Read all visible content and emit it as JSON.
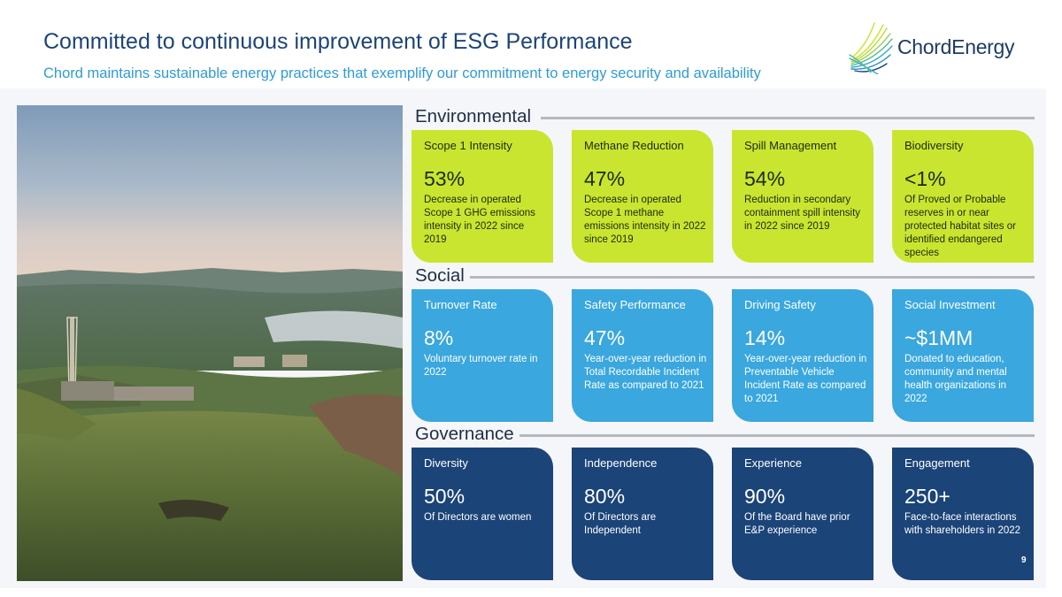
{
  "header": {
    "title": "Committed to continuous improvement of ESG Performance",
    "subtitle": "Chord maintains sustainable energy practices that exemplify our commitment to energy security and availability"
  },
  "logo": {
    "word1": "Chord",
    "word2": "Energy"
  },
  "colors": {
    "environmental": "#c9e530",
    "social": "#3aa7de",
    "governance": "#1b4478",
    "title": "#1d4477",
    "subtitle": "#2f9bd6"
  },
  "sections": [
    {
      "title": "Environmental",
      "cards": [
        {
          "title": "Scope 1 Intensity",
          "value": "53%",
          "description": "Decrease in operated Scope 1 GHG emissions intensity in 2022 since 2019"
        },
        {
          "title": "Methane Reduction",
          "value": "47%",
          "description": "Decrease in operated Scope 1 methane emissions intensity in 2022 since 2019"
        },
        {
          "title": "Spill Management",
          "value": "54%",
          "description": "Reduction in secondary containment spill intensity in 2022 since 2019"
        },
        {
          "title": "Biodiversity",
          "value": "<1%",
          "description": "Of Proved or Probable reserves in or near protected habitat sites or identified endangered species"
        }
      ]
    },
    {
      "title": "Social",
      "cards": [
        {
          "title": "Turnover Rate",
          "value": "8%",
          "description": "Voluntary turnover rate in 2022"
        },
        {
          "title": "Safety Performance",
          "value": "47%",
          "description": "Year-over-year reduction in Total Recordable Incident Rate as compared to 2021"
        },
        {
          "title": "Driving Safety",
          "value": "14%",
          "description": "Year-over-year reduction in Preventable Vehicle Incident Rate as compared to 2021"
        },
        {
          "title": "Social Investment",
          "value": "~$1MM",
          "description": "Donated to education, community and mental health organizations in 2022"
        }
      ]
    },
    {
      "title": "Governance",
      "cards": [
        {
          "title": "Diversity",
          "value": "50%",
          "description": "Of Directors are women"
        },
        {
          "title": "Independence",
          "value": "80%",
          "description": "Of Directors are Independent"
        },
        {
          "title": "Experience",
          "value": "90%",
          "description": "Of the Board have prior E&P experience"
        },
        {
          "title": "Engagement",
          "value": "250+",
          "description": "Face-to-face interactions with shareholders in 2022"
        }
      ]
    }
  ],
  "page_number": "9"
}
